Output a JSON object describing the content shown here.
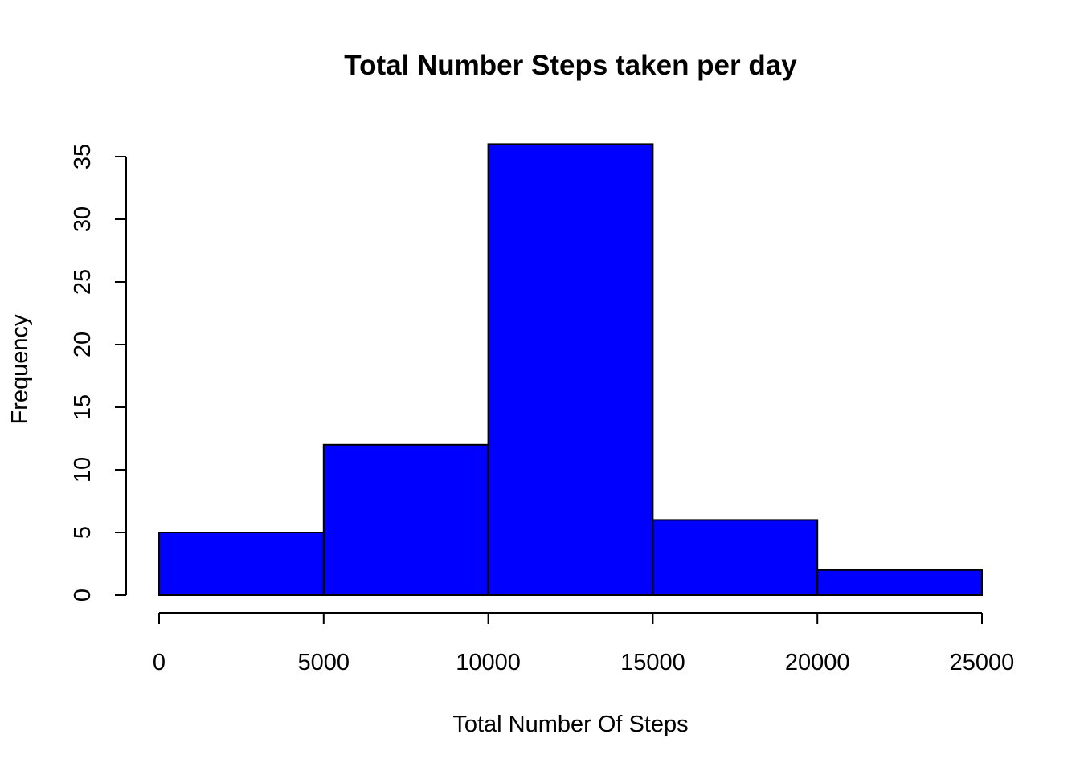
{
  "chart_data": {
    "type": "bar",
    "title": "Total Number Steps taken per day",
    "xlabel": "Total Number Of Steps",
    "ylabel": "Frequency",
    "bins": [
      {
        "from": 0,
        "to": 5000,
        "count": 5
      },
      {
        "from": 5000,
        "to": 10000,
        "count": 12
      },
      {
        "from": 10000,
        "to": 15000,
        "count": 36
      },
      {
        "from": 15000,
        "to": 20000,
        "count": 6
      },
      {
        "from": 20000,
        "to": 25000,
        "count": 2
      }
    ],
    "x_ticks": [
      "0",
      "5000",
      "10000",
      "15000",
      "20000",
      "25000"
    ],
    "y_ticks": [
      "0",
      "5",
      "10",
      "15",
      "20",
      "25",
      "30",
      "35"
    ],
    "xlim": [
      0,
      25000
    ],
    "ylim": [
      0,
      35
    ],
    "bar_color": "#0000ff",
    "grid": false,
    "legend": "none"
  }
}
